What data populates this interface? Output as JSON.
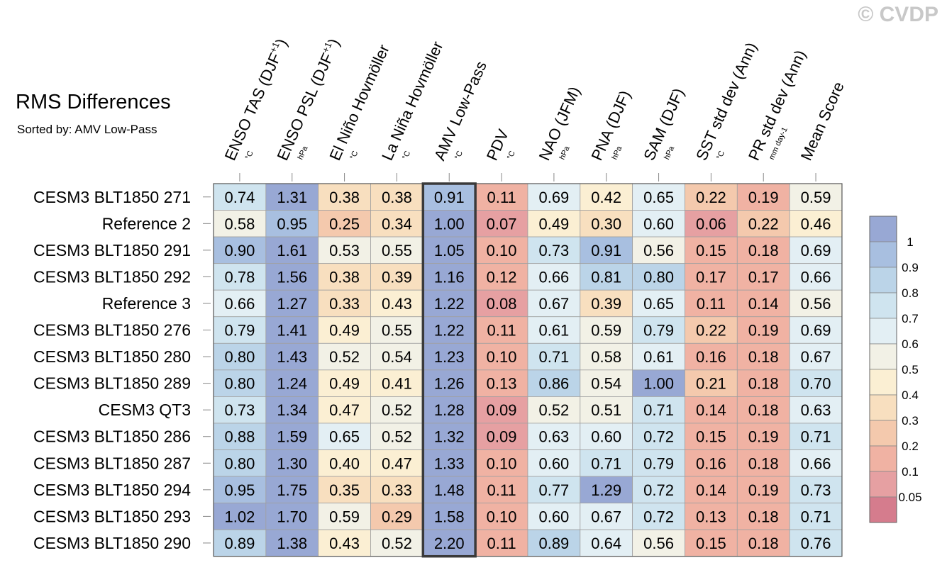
{
  "watermark": "© CVDP",
  "title": "RMS Differences",
  "subtitle": "Sorted by: AMV Low-Pass",
  "chart_data": {
    "type": "heatmap",
    "title": "RMS Differences",
    "subtitle": "Sorted by: AMV Low-Pass",
    "columns": [
      {
        "label": "ENSO TAS (DJF",
        "sup": "+1",
        "close": ")",
        "unit": "°C"
      },
      {
        "label": "ENSO PSL (DJF",
        "sup": "+1",
        "close": ")",
        "unit": "hPa"
      },
      {
        "label": "El Niño Hovmöller",
        "sup": "",
        "close": "",
        "unit": "°C"
      },
      {
        "label": "La Niña Hovmöller",
        "sup": "",
        "close": "",
        "unit": "°C"
      },
      {
        "label": "AMV Low-Pass",
        "sup": "",
        "close": "",
        "unit": "°C"
      },
      {
        "label": "PDV",
        "sup": "",
        "close": "",
        "unit": "°C"
      },
      {
        "label": "NAO (JFM)",
        "sup": "",
        "close": "",
        "unit": "hPa"
      },
      {
        "label": "PNA (DJF)",
        "sup": "",
        "close": "",
        "unit": "hPa"
      },
      {
        "label": "SAM (DJF)",
        "sup": "",
        "close": "",
        "unit": "hPa"
      },
      {
        "label": "SST std dev (Ann)",
        "sup": "",
        "close": "",
        "unit": "°C"
      },
      {
        "label": "PR std dev (Ann)",
        "sup": "",
        "close": "",
        "unit": "mm day-1"
      },
      {
        "label": "Mean Score",
        "sup": "",
        "close": "",
        "unit": ""
      }
    ],
    "rows": [
      "CESM3 BLT1850 271",
      "Reference 2",
      "CESM3 BLT1850 291",
      "CESM3 BLT1850 292",
      "Reference 3",
      "CESM3 BLT1850 276",
      "CESM3 BLT1850 280",
      "CESM3 BLT1850 289",
      "CESM3 QT3",
      "CESM3 BLT1850 286",
      "CESM3 BLT1850 287",
      "CESM3 BLT1850 294",
      "CESM3 BLT1850 293",
      "CESM3 BLT1850 290"
    ],
    "values": [
      [
        "0.74",
        "1.31",
        "0.38",
        "0.38",
        "0.91",
        "0.11",
        "0.69",
        "0.42",
        "0.65",
        "0.22",
        "0.19",
        "0.59"
      ],
      [
        "0.58",
        "0.95",
        "0.25",
        "0.34",
        "1.00",
        "0.07",
        "0.49",
        "0.30",
        "0.60",
        "0.06",
        "0.22",
        "0.46"
      ],
      [
        "0.90",
        "1.61",
        "0.53",
        "0.55",
        "1.05",
        "0.10",
        "0.73",
        "0.91",
        "0.56",
        "0.15",
        "0.18",
        "0.69"
      ],
      [
        "0.78",
        "1.56",
        "0.38",
        "0.39",
        "1.16",
        "0.12",
        "0.66",
        "0.81",
        "0.80",
        "0.17",
        "0.17",
        "0.66"
      ],
      [
        "0.66",
        "1.27",
        "0.33",
        "0.43",
        "1.22",
        "0.08",
        "0.67",
        "0.39",
        "0.65",
        "0.11",
        "0.14",
        "0.56"
      ],
      [
        "0.79",
        "1.41",
        "0.49",
        "0.55",
        "1.22",
        "0.11",
        "0.61",
        "0.59",
        "0.79",
        "0.22",
        "0.19",
        "0.69"
      ],
      [
        "0.80",
        "1.43",
        "0.52",
        "0.54",
        "1.23",
        "0.10",
        "0.71",
        "0.58",
        "0.61",
        "0.16",
        "0.18",
        "0.67"
      ],
      [
        "0.80",
        "1.24",
        "0.49",
        "0.41",
        "1.26",
        "0.13",
        "0.86",
        "0.54",
        "1.00",
        "0.21",
        "0.18",
        "0.70"
      ],
      [
        "0.73",
        "1.34",
        "0.47",
        "0.52",
        "1.28",
        "0.09",
        "0.52",
        "0.51",
        "0.71",
        "0.14",
        "0.18",
        "0.63"
      ],
      [
        "0.88",
        "1.59",
        "0.65",
        "0.52",
        "1.32",
        "0.09",
        "0.63",
        "0.60",
        "0.72",
        "0.15",
        "0.19",
        "0.71"
      ],
      [
        "0.80",
        "1.30",
        "0.40",
        "0.47",
        "1.33",
        "0.10",
        "0.60",
        "0.71",
        "0.79",
        "0.16",
        "0.18",
        "0.66"
      ],
      [
        "0.95",
        "1.75",
        "0.35",
        "0.33",
        "1.48",
        "0.11",
        "0.77",
        "1.29",
        "0.72",
        "0.14",
        "0.19",
        "0.73"
      ],
      [
        "1.02",
        "1.70",
        "0.59",
        "0.29",
        "1.58",
        "0.10",
        "0.60",
        "0.67",
        "0.72",
        "0.13",
        "0.18",
        "0.71"
      ],
      [
        "0.89",
        "1.38",
        "0.43",
        "0.52",
        "2.20",
        "0.11",
        "0.89",
        "0.64",
        "0.56",
        "0.15",
        "0.18",
        "0.76"
      ]
    ],
    "highlighted_column": "AMV Low-Pass",
    "colorbar": {
      "levels": [
        "0.05",
        "0.1",
        "0.2",
        "0.3",
        "0.4",
        "0.5",
        "0.6",
        "0.7",
        "0.8",
        "0.9",
        "1"
      ],
      "colors": [
        "#d57c8d",
        "#e6a0a2",
        "#f0b2a3",
        "#f4c9ad",
        "#f8dfbf",
        "#fbefd3",
        "#f2f1e6",
        "#e3eff4",
        "#cfe4ef",
        "#bbd4e8",
        "#a8bfe0",
        "#98a8d4"
      ]
    }
  }
}
